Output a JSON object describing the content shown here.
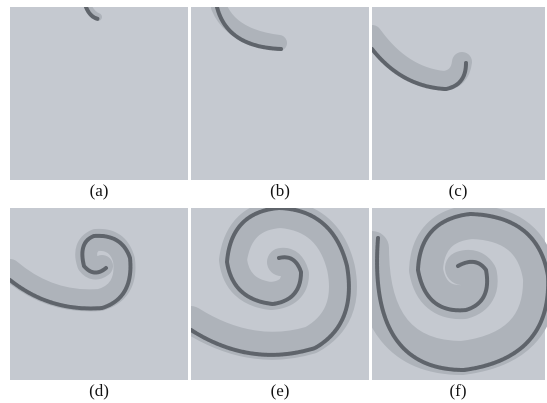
{
  "captions": [
    "(a)",
    "(b)",
    "(c)",
    "(d)",
    "(e)",
    "(f)"
  ]
}
